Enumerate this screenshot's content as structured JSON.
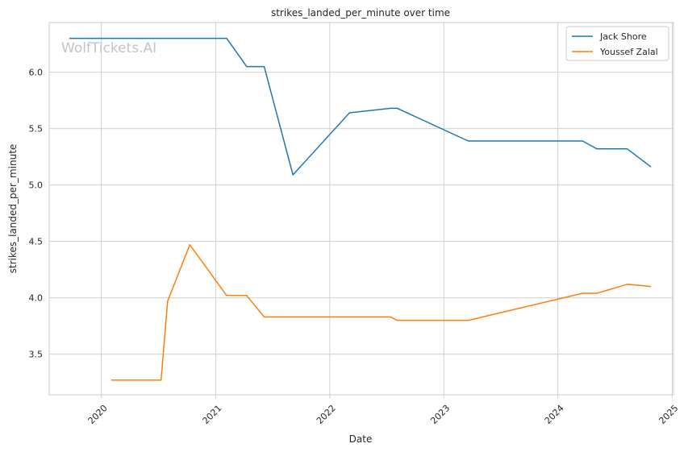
{
  "chart_data": {
    "type": "line",
    "title": "strikes_landed_per_minute over time",
    "xlabel": "Date",
    "ylabel": "strikes_landed_per_minute",
    "watermark": "WolfTickets.AI",
    "x_ticks": [
      "2020",
      "2021",
      "2022",
      "2023",
      "2024",
      "2025"
    ],
    "y_ticks": [
      "3.5",
      "4.0",
      "4.5",
      "5.0",
      "5.5",
      "6.0"
    ],
    "xlim": [
      "2019-07-18",
      "2025-01-05"
    ],
    "ylim": [
      3.14,
      6.44
    ],
    "grid": true,
    "legend_position": "top-right",
    "series": [
      {
        "name": "Jack Shore",
        "color": "#1f77b4",
        "points": [
          {
            "x": "2019-09-20",
            "y": 6.3
          },
          {
            "x": "2021-02-05",
            "y": 6.3
          },
          {
            "x": "2021-04-10",
            "y": 6.05
          },
          {
            "x": "2021-06-05",
            "y": 6.05
          },
          {
            "x": "2021-09-05",
            "y": 5.09
          },
          {
            "x": "2022-03-05",
            "y": 5.64
          },
          {
            "x": "2022-07-15",
            "y": 5.68
          },
          {
            "x": "2022-08-05",
            "y": 5.68
          },
          {
            "x": "2023-03-20",
            "y": 5.39
          },
          {
            "x": "2024-03-20",
            "y": 5.39
          },
          {
            "x": "2024-05-05",
            "y": 5.32
          },
          {
            "x": "2024-08-10",
            "y": 5.32
          },
          {
            "x": "2024-10-25",
            "y": 5.16
          }
        ]
      },
      {
        "name": "Youssef Zalal",
        "color": "#ff7f0e",
        "points": [
          {
            "x": "2020-02-01",
            "y": 3.27
          },
          {
            "x": "2020-07-10",
            "y": 3.27
          },
          {
            "x": "2020-07-31",
            "y": 3.97
          },
          {
            "x": "2020-10-10",
            "y": 4.47
          },
          {
            "x": "2021-02-05",
            "y": 4.02
          },
          {
            "x": "2021-04-10",
            "y": 4.02
          },
          {
            "x": "2021-06-05",
            "y": 3.83
          },
          {
            "x": "2022-07-15",
            "y": 3.83
          },
          {
            "x": "2022-08-05",
            "y": 3.8
          },
          {
            "x": "2023-03-20",
            "y": 3.8
          },
          {
            "x": "2024-03-20",
            "y": 4.04
          },
          {
            "x": "2024-05-05",
            "y": 4.04
          },
          {
            "x": "2024-08-10",
            "y": 4.12
          },
          {
            "x": "2024-10-25",
            "y": 4.1
          }
        ]
      }
    ]
  }
}
